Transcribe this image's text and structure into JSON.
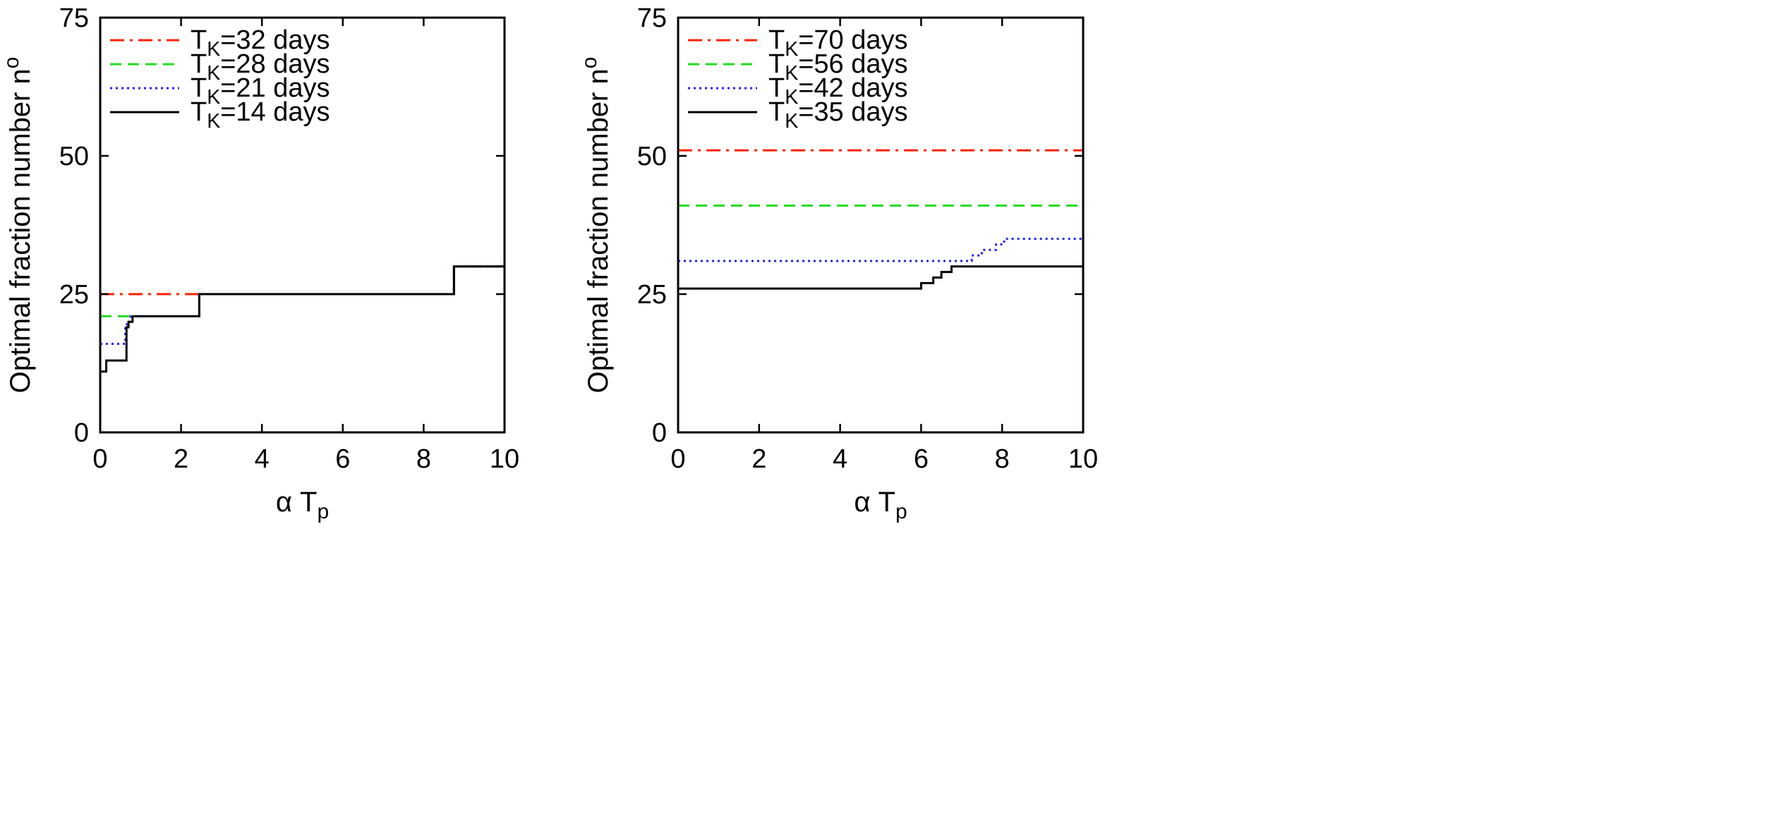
{
  "chart_data": [
    {
      "type": "line",
      "xlabel": "α T",
      "xlabel_sub": "p",
      "ylabel": "Optimal fraction number n",
      "ylabel_sup": "o",
      "xlim": [
        0,
        10
      ],
      "ylim": [
        0,
        75
      ],
      "xticks": [
        0,
        2,
        4,
        6,
        8,
        10
      ],
      "yticks": [
        0,
        25,
        50,
        75
      ],
      "grid": false,
      "legend_position": "top-left",
      "series": [
        {
          "name": "T_K=32 days",
          "label_parts": [
            "T",
            "K",
            "=32 days"
          ],
          "color": "#ff2000",
          "dash": "dashdot",
          "step_x": [
            0,
            2.45,
            8.75,
            10
          ],
          "step_y": [
            25,
            25,
            30,
            30
          ]
        },
        {
          "name": "T_K=28 days",
          "label_parts": [
            "T",
            "K",
            "=28 days"
          ],
          "color": "#22dd22",
          "dash": "dash",
          "step_x": [
            0,
            0.6,
            0.8,
            2.45,
            8.75,
            10
          ],
          "step_y": [
            21,
            21,
            21,
            25,
            30,
            30
          ]
        },
        {
          "name": "T_K=21 days",
          "label_parts": [
            "T",
            "K",
            "=21 days"
          ],
          "color": "#2222ee",
          "dash": "dot",
          "step_x": [
            0,
            0.62,
            0.66,
            0.7,
            0.75,
            0.8,
            2.45,
            8.75,
            10
          ],
          "step_y": [
            16,
            19,
            20,
            20,
            21,
            21,
            25,
            30,
            30
          ]
        },
        {
          "name": "T_K=14 days",
          "label_parts": [
            "T",
            "K",
            "=14 days"
          ],
          "color": "#000000",
          "dash": "solid",
          "step_x": [
            0,
            0.15,
            0.65,
            0.7,
            0.75,
            0.8,
            0.85,
            2.45,
            8.75,
            10
          ],
          "step_y": [
            11,
            13,
            19,
            20,
            20,
            21,
            21,
            25,
            30,
            30
          ]
        }
      ]
    },
    {
      "type": "line",
      "xlabel": "α T",
      "xlabel_sub": "p",
      "ylabel": "Optimal fraction number n",
      "ylabel_sup": "o",
      "xlim": [
        0,
        10
      ],
      "ylim": [
        0,
        75
      ],
      "xticks": [
        0,
        2,
        4,
        6,
        8,
        10
      ],
      "yticks": [
        0,
        25,
        50,
        75
      ],
      "grid": false,
      "legend_position": "top-left",
      "series": [
        {
          "name": "T_K=70 days",
          "label_parts": [
            "T",
            "K",
            "=70 days"
          ],
          "color": "#ff2000",
          "dash": "dashdot",
          "step_x": [
            0,
            10
          ],
          "step_y": [
            51,
            51
          ]
        },
        {
          "name": "T_K=56 days",
          "label_parts": [
            "T",
            "K",
            "=56 days"
          ],
          "color": "#22dd22",
          "dash": "dash",
          "step_x": [
            0,
            10
          ],
          "step_y": [
            41,
            41
          ]
        },
        {
          "name": "T_K=42 days",
          "label_parts": [
            "T",
            "K",
            "=42 days"
          ],
          "color": "#2222ee",
          "dash": "dot",
          "step_x": [
            0,
            7.25,
            7.35,
            7.5,
            7.7,
            7.85,
            8.05,
            10
          ],
          "step_y": [
            31,
            32,
            32,
            33,
            33,
            34,
            35,
            35
          ]
        },
        {
          "name": "T_K=35 days",
          "label_parts": [
            "T",
            "K",
            "=35 days"
          ],
          "color": "#000000",
          "dash": "solid",
          "step_x": [
            0,
            6.0,
            6.15,
            6.3,
            6.5,
            6.75,
            10
          ],
          "step_y": [
            26,
            27,
            27,
            28,
            29,
            30,
            30
          ]
        }
      ]
    }
  ]
}
